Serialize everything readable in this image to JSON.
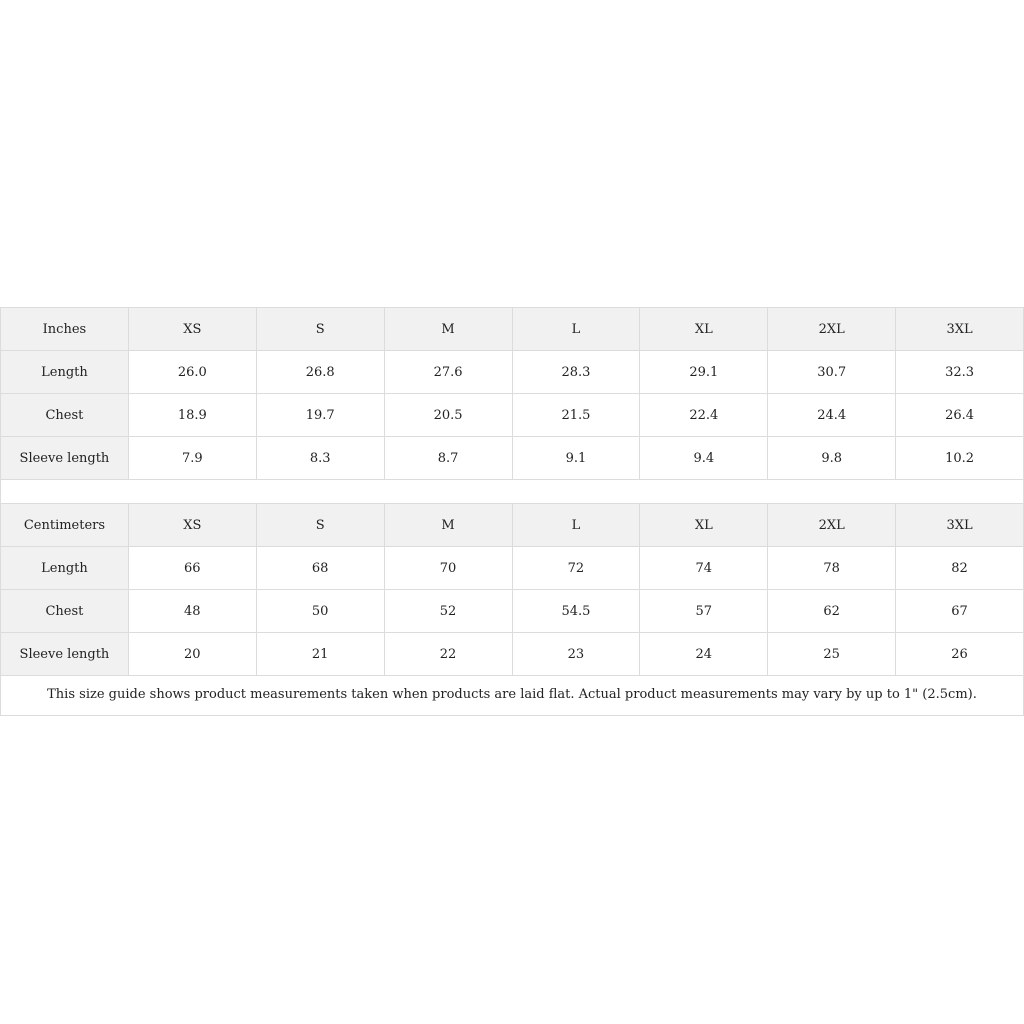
{
  "inches": {
    "headers": [
      "Inches",
      "XS",
      "S",
      "M",
      "L",
      "XL",
      "2XL",
      "3XL"
    ],
    "rows": [
      {
        "label": "Length",
        "values": [
          "26.0",
          "26.8",
          "27.6",
          "28.3",
          "29.1",
          "30.7",
          "32.3"
        ]
      },
      {
        "label": "Chest",
        "values": [
          "18.9",
          "19.7",
          "20.5",
          "21.5",
          "22.4",
          "24.4",
          "26.4"
        ]
      },
      {
        "label": "Sleeve length",
        "values": [
          "7.9",
          "8.3",
          "8.7",
          "9.1",
          "9.4",
          "9.8",
          "10.2"
        ]
      }
    ]
  },
  "centimeters": {
    "headers": [
      "Centimeters",
      "XS",
      "S",
      "M",
      "L",
      "XL",
      "2XL",
      "3XL"
    ],
    "rows": [
      {
        "label": "Length",
        "values": [
          "66",
          "68",
          "70",
          "72",
          "74",
          "78",
          "82"
        ]
      },
      {
        "label": "Chest",
        "values": [
          "48",
          "50",
          "52",
          "54.5",
          "57",
          "62",
          "67"
        ]
      },
      {
        "label": "Sleeve length",
        "values": [
          "20",
          "21",
          "22",
          "23",
          "24",
          "25",
          "26"
        ]
      }
    ]
  },
  "note": "This size guide shows product measurements taken when products are laid flat.  Actual product measurements may vary by up to 1\" (2.5cm)."
}
